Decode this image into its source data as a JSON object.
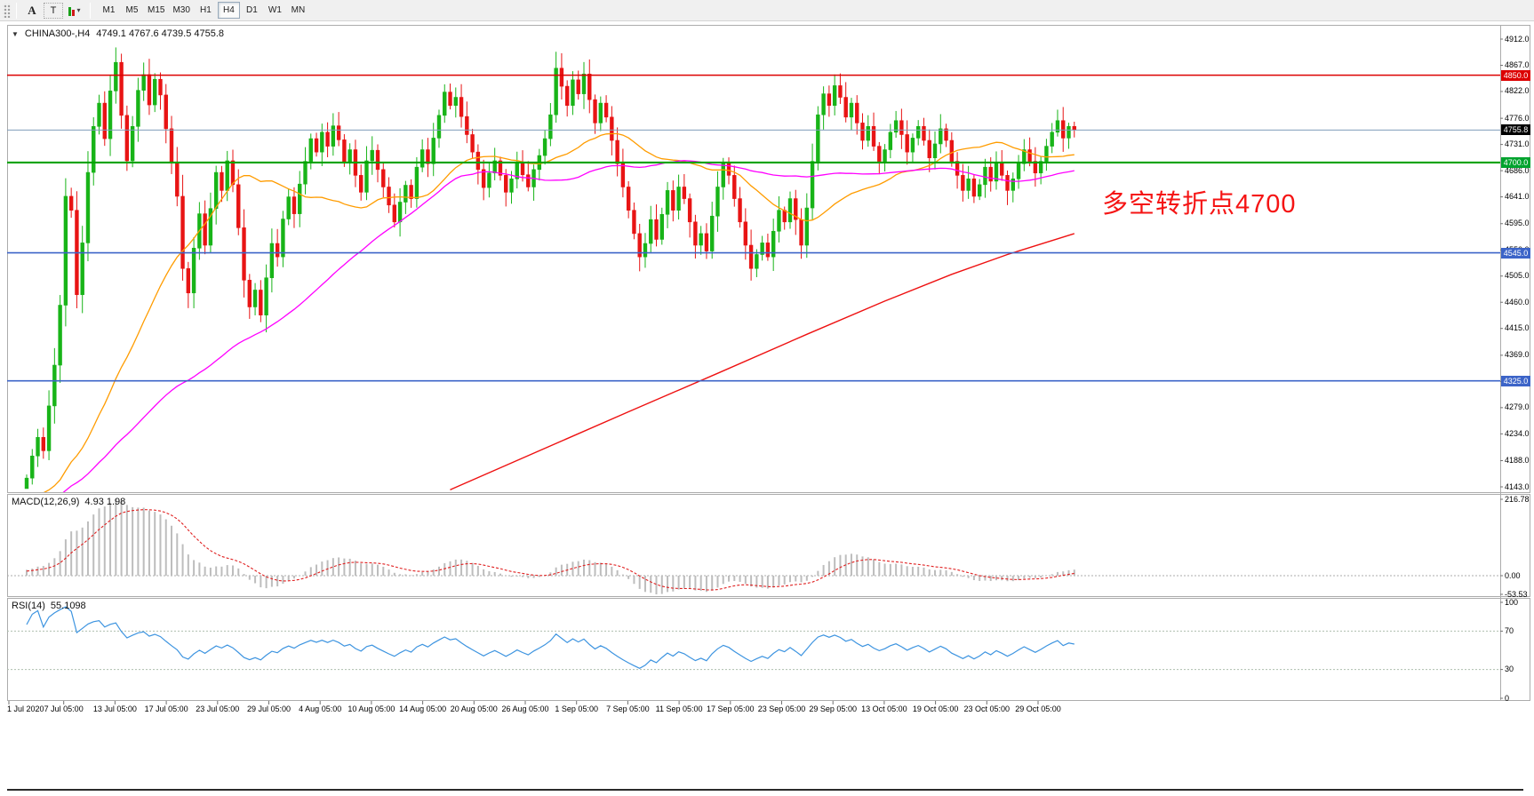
{
  "toolbar": {
    "buttons": [
      {
        "name": "annotate-a",
        "label": "A"
      },
      {
        "name": "text-tool",
        "label": "T"
      }
    ],
    "dropdown_caret": "▾",
    "timeframes": [
      {
        "label": "M1",
        "selected": false
      },
      {
        "label": "M5",
        "selected": false
      },
      {
        "label": "M15",
        "selected": false
      },
      {
        "label": "M30",
        "selected": false
      },
      {
        "label": "H1",
        "selected": false
      },
      {
        "label": "H4",
        "selected": true
      },
      {
        "label": "D1",
        "selected": false
      },
      {
        "label": "W1",
        "selected": false
      },
      {
        "label": "MN",
        "selected": false
      }
    ]
  },
  "header": {
    "collapse_icon": "▼",
    "symbol": "CHINA300-,H4",
    "ohlc": "4749.1 4767.6 4739.5 4755.8"
  },
  "annotation": {
    "text": "多空转折点4700",
    "color": "#f51414"
  },
  "axis_badges": [
    {
      "name": "price-badge-4850",
      "label": "4850.0",
      "bg": "#dc0000",
      "price": 4850.0
    },
    {
      "name": "price-badge-current",
      "label": "4755.8",
      "bg": "#000000",
      "price": 4755.8
    },
    {
      "name": "price-badge-4700",
      "label": "4700.0",
      "bg": "#00a32e",
      "price": 4700.0
    },
    {
      "name": "price-badge-4545",
      "label": "4545.0",
      "bg": "#3c64c8",
      "price": 4545.0
    },
    {
      "name": "price-badge-4325",
      "label": "4325.0",
      "bg": "#3c64c8",
      "price": 4325.0
    }
  ],
  "hlines": [
    {
      "name": "resistance-line-4850",
      "price": 4850.0,
      "color": "#dd0000",
      "width": 1.6
    },
    {
      "name": "current-price-line",
      "price": 4755.8,
      "color": "#7f9db9",
      "width": 1
    },
    {
      "name": "pivot-line-4700",
      "price": 4700.0,
      "color": "#00a300",
      "width": 2.2
    },
    {
      "name": "support-line-4545",
      "price": 4545.0,
      "color": "#3c64c8",
      "width": 1.6
    },
    {
      "name": "support-line-4325",
      "price": 4325.0,
      "color": "#3c64c8",
      "width": 1.6
    }
  ],
  "chart_data": {
    "type": "candlestick",
    "title": "CHINA300-,H4",
    "timeframe": "H4",
    "ohlc_current": {
      "open": 4749.1,
      "high": 4767.6,
      "low": 4739.5,
      "close": 4755.8
    },
    "ylim": [
      4143,
      4912
    ],
    "price_ticks": [
      "4912.0",
      "4867.0",
      "4822.0",
      "4776.0",
      "4731.0",
      "4686.0",
      "4641.0",
      "4595.0",
      "4550.0",
      "4505.0",
      "4460.0",
      "4415.0",
      "4369.0",
      "4324.0",
      "4279.0",
      "4234.0",
      "4188.0",
      "4143.0"
    ],
    "x_labels": [
      "1 Jul 2020",
      "7 Jul 05:00",
      "13 Jul 05:00",
      "17 Jul 05:00",
      "23 Jul 05:00",
      "29 Jul 05:00",
      "4 Aug 05:00",
      "10 Aug 05:00",
      "14 Aug 05:00",
      "20 Aug 05:00",
      "26 Aug 05:00",
      "1 Sep 05:00",
      "7 Sep 05:00",
      "11 Sep 05:00",
      "17 Sep 05:00",
      "23 Sep 05:00",
      "29 Sep 05:00",
      "13 Oct 05:00",
      "19 Oct 05:00",
      "23 Oct 05:00",
      "29 Oct 05:00"
    ],
    "levels": [
      4850,
      4700,
      4545,
      4325
    ],
    "prev_close": 4140,
    "closes": [
      4158,
      4196,
      4228,
      4205,
      4282,
      4352,
      4455,
      4642,
      4618,
      4473,
      4562,
      4683,
      4762,
      4802,
      4741,
      4823,
      4872,
      4781,
      4703,
      4762,
      4824,
      4851,
      4799,
      4843,
      4816,
      4758,
      4701,
      4642,
      4518,
      4476,
      4553,
      4612,
      4558,
      4621,
      4683,
      4652,
      4703,
      4662,
      4588,
      4498,
      4452,
      4481,
      4438,
      4502,
      4561,
      4538,
      4603,
      4641,
      4612,
      4663,
      4702,
      4741,
      4718,
      4752,
      4728,
      4763,
      4739,
      4701,
      4722,
      4678,
      4649,
      4703,
      4721,
      4688,
      4658,
      4627,
      4598,
      4632,
      4661,
      4638,
      4692,
      4722,
      4698,
      4742,
      4781,
      4821,
      4798,
      4812,
      4779,
      4748,
      4718,
      4688,
      4657,
      4682,
      4703,
      4678,
      4649,
      4672,
      4701,
      4679,
      4658,
      4688,
      4712,
      4741,
      4782,
      4862,
      4831,
      4798,
      4842,
      4818,
      4852,
      4808,
      4768,
      4802,
      4778,
      4738,
      4698,
      4658,
      4618,
      4578,
      4538,
      4561,
      4602,
      4568,
      4611,
      4652,
      4618,
      4658,
      4638,
      4598,
      4558,
      4578,
      4548,
      4608,
      4658,
      4698,
      4678,
      4638,
      4598,
      4558,
      4518,
      4542,
      4562,
      4538,
      4582,
      4618,
      4598,
      4638,
      4602,
      4558,
      4622,
      4702,
      4782,
      4818,
      4798,
      4832,
      4812,
      4778,
      4802,
      4768,
      4738,
      4762,
      4728,
      4702,
      4722,
      4752,
      4772,
      4748,
      4718,
      4742,
      4762,
      4738,
      4708,
      4732,
      4758,
      4738,
      4702,
      4678,
      4652,
      4672,
      4642,
      4662,
      4692,
      4668,
      4698,
      4678,
      4652,
      4672,
      4698,
      4722,
      4702,
      4682,
      4702,
      4728,
      4752,
      4772,
      4742,
      4762,
      4755.8
    ],
    "colors": {
      "up": "#18b418",
      "down": "#e81414"
    },
    "ma": {
      "fast_period": 34,
      "fast_color": "#ff9c00",
      "mid_period": 72,
      "mid_color": "#ff00ff",
      "long_color": "#ee1111",
      "long_anchors": [
        [
          76,
          4138
        ],
        [
          92,
          4205
        ],
        [
          108,
          4272
        ],
        [
          124,
          4338
        ],
        [
          140,
          4405
        ],
        [
          154,
          4462
        ],
        [
          166,
          4508
        ],
        [
          176,
          4542
        ],
        [
          188,
          4578
        ]
      ]
    },
    "indicators": {
      "macd": {
        "label": "MACD(12,26,9)",
        "values_text": "4.93 1.98",
        "fast": 12,
        "slow": 26,
        "signal": 9,
        "axis_labels": [
          "216.78",
          "0.00",
          "-53.53"
        ],
        "hist_color": "#bdbdbd",
        "signal_color": "#e02020"
      },
      "rsi": {
        "label": "RSI(14)",
        "value_text": "55.1098",
        "period": 14,
        "axis_labels": [
          "100",
          "70",
          "30",
          "0"
        ],
        "levels": [
          70,
          30
        ],
        "color": "#3d94e0"
      }
    }
  }
}
